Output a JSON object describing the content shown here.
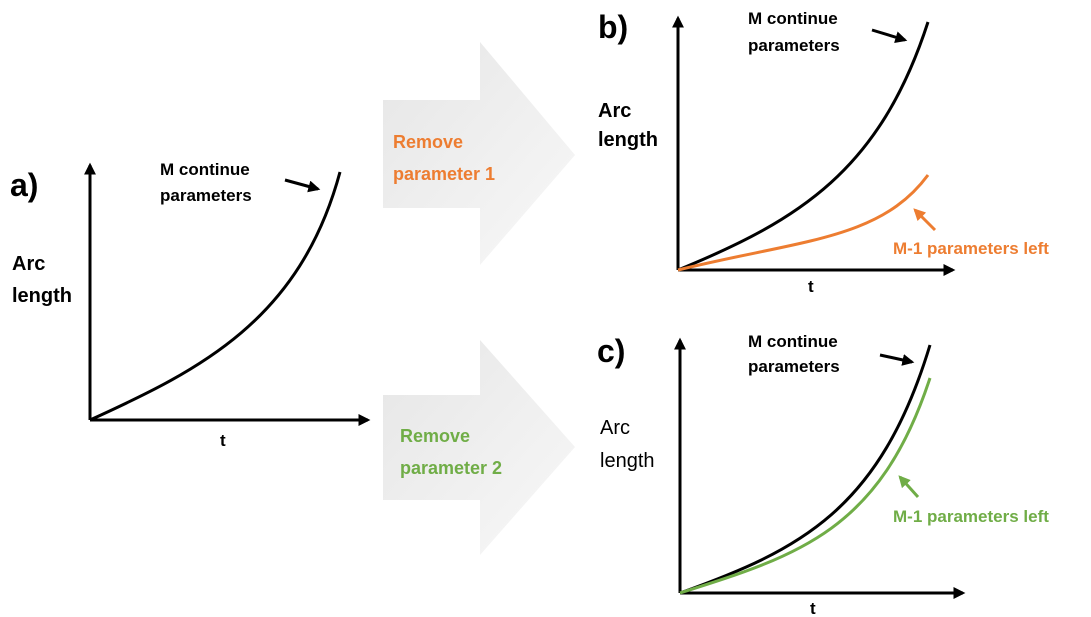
{
  "panels": [
    {
      "label": "a)",
      "y_label": [
        "Arc",
        "length"
      ],
      "x_label": "t",
      "curve_label": [
        "M continue",
        "parameters"
      ]
    },
    {
      "label": "b)",
      "y_label": [
        "Arc",
        "length"
      ],
      "x_label": "t",
      "curve_label": [
        "M continue",
        "parameters"
      ],
      "reduced_label": "M-1 parameters left"
    },
    {
      "label": "c)",
      "y_label": [
        "Arc",
        "length"
      ],
      "x_label": "t",
      "curve_label": [
        "M continue",
        "parameters"
      ],
      "reduced_label": "M-1 parameters left"
    }
  ],
  "steps": [
    {
      "label": [
        "Remove",
        "parameter 1"
      ]
    },
    {
      "label": [
        "Remove",
        "parameter 2"
      ]
    }
  ]
}
